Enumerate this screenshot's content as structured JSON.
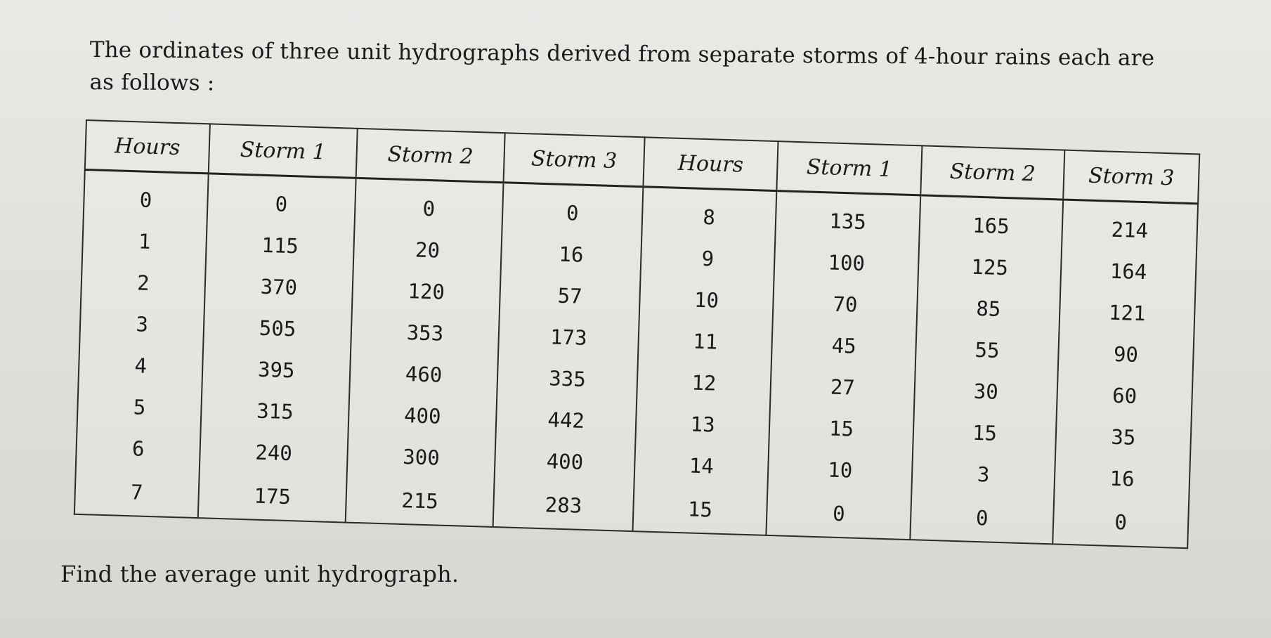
{
  "problem": {
    "intro_line1": "The ordinates of three unit hydrographs derived from separate storms of 4-hour rains each are",
    "intro_line2": "as follows :",
    "closing": "Find the average unit hydrograph."
  },
  "table": {
    "headers": [
      "Hours",
      "Storm 1",
      "Storm 2",
      "Storm 3",
      "Hours",
      "Storm 1",
      "Storm 2",
      "Storm 3"
    ],
    "rows": [
      [
        "0",
        "0",
        "0",
        "0",
        "8",
        "135",
        "165",
        "214"
      ],
      [
        "1",
        "115",
        "20",
        "16",
        "9",
        "100",
        "125",
        "164"
      ],
      [
        "2",
        "370",
        "120",
        "57",
        "10",
        "70",
        "85",
        "121"
      ],
      [
        "3",
        "505",
        "353",
        "173",
        "11",
        "45",
        "55",
        "90"
      ],
      [
        "4",
        "395",
        "460",
        "335",
        "12",
        "27",
        "30",
        "60"
      ],
      [
        "5",
        "315",
        "400",
        "442",
        "13",
        "15",
        "15",
        "35"
      ],
      [
        "6",
        "240",
        "300",
        "400",
        "14",
        "10",
        "3",
        "16"
      ],
      [
        "7",
        "175",
        "215",
        "283",
        "15",
        "0",
        "0",
        "0"
      ]
    ]
  }
}
